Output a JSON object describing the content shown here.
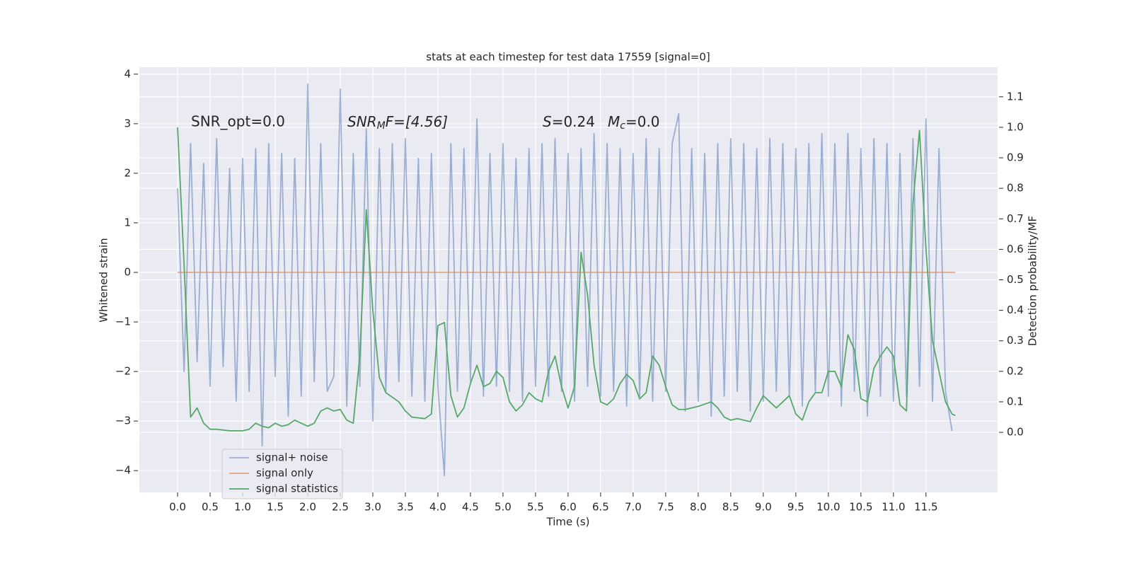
{
  "chart_data": {
    "type": "line",
    "title": "stats at each timestep for test data 17559 [signal=0]",
    "xlabel": "Time (s)",
    "ylabel": "Whitened strain",
    "y2label": "Detection probability/MF",
    "annotations": [
      [
        "SNR_opt=0.0"
      ],
      [
        "SNR",
        "M",
        "F=[4.56]"
      ],
      [
        "S",
        "=0.24",
        "M",
        "c",
        "=0.0"
      ]
    ],
    "xlim": [
      -0.587,
      12.6
    ],
    "ylim": [
      -4.44,
      4.14
    ],
    "y2lim": [
      -0.197,
      1.197
    ],
    "xticks": [
      {
        "value": 0,
        "label": "0.0"
      },
      0.5,
      {
        "value": 1,
        "label": "1.0"
      },
      1.5,
      {
        "value": 2,
        "label": "2.0"
      },
      2.5,
      {
        "value": 3,
        "label": "3.0"
      },
      3.5,
      {
        "value": 4,
        "label": "4.0"
      },
      4.5,
      {
        "value": 5,
        "label": "5.0"
      },
      5.5,
      {
        "value": 6,
        "label": "6.0"
      },
      6.5,
      {
        "value": 7,
        "label": "7.0"
      },
      7.5,
      {
        "value": 8,
        "label": "8.0"
      },
      8.5,
      {
        "value": 9,
        "label": "9.0"
      },
      9.5,
      {
        "value": 10,
        "label": "10.0"
      },
      10.5,
      {
        "value": 11,
        "label": "11.0"
      },
      11.5
    ],
    "yticks": [
      {
        "value": -4,
        "label": "−4"
      },
      {
        "value": -3,
        "label": "−3"
      },
      {
        "value": -2,
        "label": "−2"
      },
      {
        "value": -1,
        "label": "−1"
      },
      0,
      1,
      2,
      3,
      4
    ],
    "y2ticks": [
      {
        "value": 0,
        "label": "0.0"
      },
      0.1,
      0.2,
      0.3,
      0.4,
      0.5,
      0.6,
      0.7,
      0.8,
      0.9,
      {
        "value": 1,
        "label": "1.0"
      },
      1.1
    ],
    "grid": true,
    "legend": "lower left",
    "series": [
      {
        "name": "signal+ noise",
        "color": "#4c72b0",
        "opacity": 0.5,
        "x": [
          0,
          0.1,
          0.2,
          0.3,
          0.4,
          0.5,
          0.6,
          0.7,
          0.8,
          0.9,
          1,
          1.1,
          1.2,
          1.3,
          1.4,
          1.5,
          1.6,
          1.7,
          1.8,
          1.9,
          2,
          2.1,
          2.2,
          2.3,
          2.4,
          2.5,
          2.6,
          2.7,
          2.8,
          2.9,
          3,
          3.1,
          3.2,
          3.3,
          3.4,
          3.5,
          3.6,
          3.7,
          3.8,
          3.9,
          4,
          4.1,
          4.2,
          4.3,
          4.4,
          4.5,
          4.6,
          4.7,
          4.8,
          4.9,
          5,
          5.1,
          5.2,
          5.3,
          5.4,
          5.5,
          5.6,
          5.7,
          5.8,
          5.9,
          6,
          6.1,
          6.2,
          6.3,
          6.4,
          6.5,
          6.6,
          6.7,
          6.8,
          6.9,
          7,
          7.1,
          7.2,
          7.3,
          7.4,
          7.5,
          7.6,
          7.7,
          7.8,
          7.9,
          8,
          8.1,
          8.2,
          8.3,
          8.4,
          8.5,
          8.6,
          8.7,
          8.8,
          8.9,
          9,
          9.1,
          9.2,
          9.3,
          9.4,
          9.5,
          9.6,
          9.7,
          9.8,
          9.9,
          10,
          10.1,
          10.2,
          10.3,
          10.4,
          10.5,
          10.6,
          10.7,
          10.8,
          10.9,
          11,
          11.1,
          11.2,
          11.3,
          11.4,
          11.5,
          11.6,
          11.7,
          11.8,
          11.9
        ],
        "values": [
          1.7,
          -2.0,
          2.6,
          -1.8,
          2.2,
          -2.3,
          2.7,
          -1.9,
          2.1,
          -2.6,
          2.3,
          -2.4,
          2.5,
          -3.5,
          2.6,
          -2.1,
          2.4,
          -2.9,
          2.3,
          -2.5,
          3.8,
          -2.2,
          2.6,
          -2.4,
          -2.1,
          3.7,
          -2.7,
          2.4,
          -2.3,
          2.9,
          -3.0,
          2.5,
          -2.4,
          2.6,
          -2.2,
          2.7,
          -2.5,
          2.3,
          -2.6,
          2.4,
          -2.3,
          -4.1,
          2.6,
          -2.4,
          2.5,
          -2.2,
          3.1,
          -2.5,
          2.4,
          -2.3,
          2.6,
          -2.4,
          2.3,
          -2.6,
          2.5,
          -2.3,
          2.6,
          -2.5,
          2.7,
          -2.4,
          2.4,
          -2.6,
          2.5,
          -2.3,
          2.8,
          -2.5,
          2.6,
          -2.4,
          2.5,
          -2.7,
          2.4,
          -2.5,
          2.7,
          -2.6,
          2.5,
          -2.4,
          2.6,
          3.2,
          -2.8,
          2.5,
          -2.6,
          2.4,
          -2.9,
          2.6,
          -2.5,
          2.7,
          -2.4,
          2.6,
          -2.8,
          2.5,
          -2.6,
          2.7,
          -2.4,
          2.6,
          -2.5,
          2.5,
          -2.7,
          2.6,
          -2.4,
          2.8,
          -2.5,
          2.6,
          -2.7,
          2.8,
          -2.4,
          2.5,
          -2.9,
          2.7,
          -2.5,
          2.6,
          -2.6,
          2.4,
          -2.5,
          2.7,
          -2.3,
          3.1,
          -2.6,
          2.5,
          -2.4,
          -3.2
        ]
      },
      {
        "name": "signal only",
        "color": "#dd8452",
        "opacity": 0.7,
        "x": [
          0,
          11.95
        ],
        "values": [
          0,
          0
        ]
      },
      {
        "name": "signal statistics",
        "color": "#55a868",
        "opacity": 1,
        "axis": "y2",
        "x": [
          0,
          0.1,
          0.2,
          0.3,
          0.4,
          0.5,
          0.6,
          0.8,
          1,
          1.1,
          1.2,
          1.3,
          1.4,
          1.5,
          1.6,
          1.7,
          1.8,
          1.9,
          2,
          2.1,
          2.2,
          2.3,
          2.4,
          2.5,
          2.6,
          2.7,
          2.8,
          2.9,
          3,
          3.1,
          3.2,
          3.4,
          3.5,
          3.6,
          3.8,
          3.9,
          4,
          4.1,
          4.2,
          4.3,
          4.4,
          4.5,
          4.6,
          4.7,
          4.8,
          4.9,
          5,
          5.1,
          5.2,
          5.3,
          5.4,
          5.5,
          5.6,
          5.7,
          5.8,
          5.9,
          6,
          6.1,
          6.2,
          6.3,
          6.4,
          6.5,
          6.6,
          6.7,
          6.8,
          6.9,
          7,
          7.1,
          7.2,
          7.3,
          7.4,
          7.5,
          7.6,
          7.7,
          7.8,
          8,
          8.2,
          8.3,
          8.4,
          8.5,
          8.6,
          8.7,
          8.8,
          8.9,
          9,
          9.1,
          9.2,
          9.3,
          9.4,
          9.5,
          9.6,
          9.7,
          9.8,
          9.9,
          10,
          10.1,
          10.2,
          10.3,
          10.4,
          10.5,
          10.6,
          10.7,
          10.8,
          10.9,
          11,
          11.1,
          11.2,
          11.3,
          11.4,
          11.5,
          11.6,
          11.7,
          11.8,
          11.9,
          11.95
        ],
        "values": [
          1.0,
          0.55,
          0.05,
          0.08,
          0.03,
          0.01,
          0.01,
          0.005,
          0.005,
          0.01,
          0.03,
          0.02,
          0.015,
          0.03,
          0.02,
          0.025,
          0.04,
          0.03,
          0.02,
          0.03,
          0.07,
          0.08,
          0.07,
          0.075,
          0.04,
          0.03,
          0.25,
          0.73,
          0.4,
          0.18,
          0.13,
          0.1,
          0.07,
          0.05,
          0.045,
          0.06,
          0.35,
          0.36,
          0.12,
          0.05,
          0.08,
          0.16,
          0.22,
          0.15,
          0.16,
          0.2,
          0.18,
          0.1,
          0.07,
          0.09,
          0.13,
          0.11,
          0.1,
          0.2,
          0.25,
          0.15,
          0.08,
          0.15,
          0.59,
          0.45,
          0.22,
          0.1,
          0.09,
          0.11,
          0.16,
          0.19,
          0.17,
          0.11,
          0.13,
          0.25,
          0.22,
          0.15,
          0.09,
          0.075,
          0.075,
          0.085,
          0.1,
          0.08,
          0.05,
          0.04,
          0.045,
          0.04,
          0.035,
          0.08,
          0.12,
          0.1,
          0.08,
          0.1,
          0.12,
          0.06,
          0.04,
          0.1,
          0.13,
          0.13,
          0.2,
          0.2,
          0.15,
          0.32,
          0.27,
          0.11,
          0.1,
          0.21,
          0.25,
          0.28,
          0.25,
          0.09,
          0.07,
          0.75,
          0.99,
          0.6,
          0.3,
          0.2,
          0.1,
          0.06,
          0.055
        ]
      }
    ]
  }
}
